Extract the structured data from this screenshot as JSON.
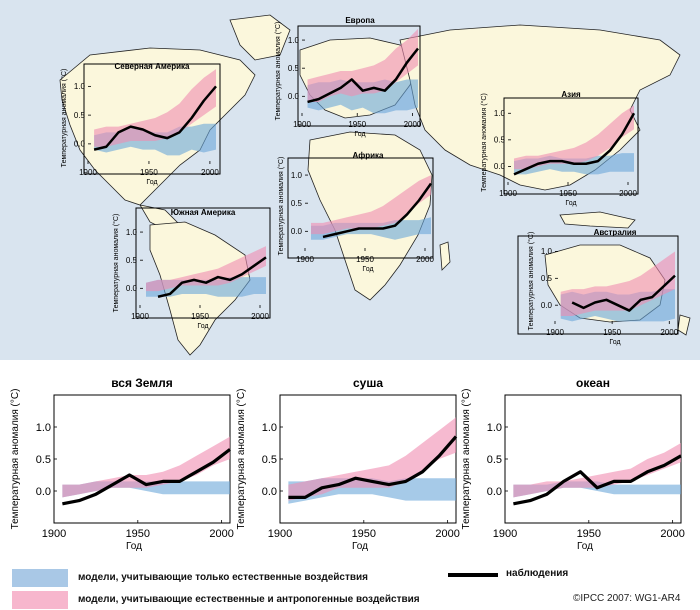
{
  "colors": {
    "ocean": "#d9e4ef",
    "land": "#fbf7dc",
    "coast": "#222222",
    "natural": "#6aa6d9",
    "anthro": "#f08cb0",
    "observed": "#000000"
  },
  "chart_data": [
    {
      "type": "area",
      "region": "map",
      "title": "Северная Америка",
      "ylabel": "Температурная аномалия (°C)",
      "xlabel": "Год",
      "xticks": [
        "1900",
        "1950",
        "2000"
      ],
      "yticks": [
        "0.0",
        "0.5",
        "1.0"
      ],
      "xlim": [
        1900,
        2005
      ],
      "ylim": [
        -0.35,
        1.25
      ],
      "x": [
        1905,
        1915,
        1925,
        1935,
        1945,
        1955,
        1965,
        1975,
        1985,
        1995,
        2005
      ],
      "observed": [
        -0.1,
        -0.05,
        0.2,
        0.3,
        0.25,
        0.15,
        0.1,
        0.2,
        0.45,
        0.75,
        1.0
      ],
      "natural_band": {
        "low": [
          -0.1,
          -0.15,
          -0.1,
          -0.05,
          -0.1,
          -0.1,
          -0.2,
          -0.2,
          -0.1,
          -0.15,
          -0.1
        ],
        "high": [
          0.15,
          0.2,
          0.2,
          0.3,
          0.25,
          0.2,
          0.2,
          0.3,
          0.3,
          0.35,
          0.35
        ]
      },
      "anthro_band": {
        "low": [
          -0.05,
          -0.05,
          0.0,
          0.05,
          0.05,
          0.05,
          0.1,
          0.2,
          0.35,
          0.5,
          0.65
        ],
        "high": [
          0.25,
          0.3,
          0.3,
          0.35,
          0.4,
          0.45,
          0.55,
          0.7,
          0.95,
          1.15,
          1.3
        ]
      }
    },
    {
      "type": "area",
      "region": "map",
      "title": "Европа",
      "ylabel": "Температурная аномалия (°C)",
      "xlabel": "Год",
      "xticks": [
        "1900",
        "1950",
        "2000"
      ],
      "yticks": [
        "0.0",
        "0.5",
        "1.0"
      ],
      "xlim": [
        1900,
        2005
      ],
      "ylim": [
        -0.35,
        1.25
      ],
      "x": [
        1905,
        1915,
        1925,
        1935,
        1945,
        1955,
        1965,
        1975,
        1985,
        1995,
        2005
      ],
      "observed": [
        -0.1,
        -0.05,
        0.05,
        0.15,
        0.3,
        0.1,
        0.15,
        0.1,
        0.3,
        0.6,
        0.85
      ],
      "natural_band": {
        "low": [
          -0.2,
          -0.25,
          -0.2,
          -0.15,
          -0.25,
          -0.2,
          -0.3,
          -0.3,
          -0.25,
          -0.25,
          -0.2
        ],
        "high": [
          0.2,
          0.25,
          0.25,
          0.3,
          0.25,
          0.25,
          0.25,
          0.3,
          0.25,
          0.3,
          0.3
        ]
      },
      "anthro_band": {
        "low": [
          -0.1,
          -0.1,
          0.0,
          0.05,
          0.0,
          0.05,
          0.05,
          0.1,
          0.25,
          0.4,
          0.55
        ],
        "high": [
          0.3,
          0.35,
          0.4,
          0.45,
          0.45,
          0.5,
          0.55,
          0.65,
          0.85,
          1.0,
          1.2
        ]
      }
    },
    {
      "type": "area",
      "region": "map",
      "title": "Азия",
      "ylabel": "Температурная аномалия (°C)",
      "xlabel": "Год",
      "xticks": [
        "1900",
        "1950",
        "2000"
      ],
      "yticks": [
        "0.0",
        "0.5",
        "1.0"
      ],
      "xlim": [
        1900,
        2005
      ],
      "ylim": [
        -0.35,
        1.25
      ],
      "x": [
        1905,
        1915,
        1925,
        1935,
        1945,
        1955,
        1965,
        1975,
        1985,
        1995,
        2005
      ],
      "observed": [
        -0.15,
        -0.05,
        0.05,
        0.1,
        0.1,
        0.05,
        0.05,
        0.1,
        0.3,
        0.6,
        1.0
      ],
      "natural_band": {
        "low": [
          -0.15,
          -0.15,
          -0.1,
          -0.05,
          -0.1,
          -0.1,
          -0.15,
          -0.15,
          -0.1,
          -0.1,
          -0.1
        ],
        "high": [
          0.1,
          0.15,
          0.15,
          0.2,
          0.15,
          0.15,
          0.15,
          0.2,
          0.2,
          0.25,
          0.25
        ]
      },
      "anthro_band": {
        "low": [
          -0.05,
          -0.05,
          0.0,
          0.05,
          0.05,
          0.05,
          0.1,
          0.2,
          0.35,
          0.55,
          0.7
        ],
        "high": [
          0.15,
          0.2,
          0.2,
          0.25,
          0.3,
          0.35,
          0.45,
          0.6,
          0.8,
          1.0,
          1.15
        ]
      }
    },
    {
      "type": "area",
      "region": "map",
      "title": "Африка",
      "ylabel": "Температурная аномалия (°C)",
      "xlabel": "Год",
      "xticks": [
        "1900",
        "1950",
        "2000"
      ],
      "yticks": [
        "0.0",
        "0.5",
        "1.0"
      ],
      "xlim": [
        1900,
        2005
      ],
      "ylim": [
        -0.35,
        1.25
      ],
      "x": [
        1905,
        1915,
        1925,
        1935,
        1945,
        1955,
        1965,
        1975,
        1985,
        1995,
        2005
      ],
      "observed": [
        null,
        -0.1,
        -0.05,
        0.0,
        0.05,
        0.05,
        0.05,
        0.1,
        0.3,
        0.55,
        0.85
      ],
      "natural_band": {
        "low": [
          -0.15,
          -0.15,
          -0.1,
          -0.05,
          -0.05,
          -0.05,
          -0.1,
          -0.15,
          -0.1,
          -0.05,
          -0.05
        ],
        "high": [
          0.1,
          0.1,
          0.15,
          0.15,
          0.15,
          0.15,
          0.15,
          0.2,
          0.2,
          0.2,
          0.25
        ]
      },
      "anthro_band": {
        "low": [
          -0.05,
          -0.05,
          0.0,
          0.05,
          0.05,
          0.05,
          0.1,
          0.15,
          0.3,
          0.5,
          0.65
        ],
        "high": [
          0.15,
          0.15,
          0.2,
          0.25,
          0.3,
          0.35,
          0.45,
          0.6,
          0.75,
          0.9,
          1.0
        ]
      }
    },
    {
      "type": "area",
      "region": "map",
      "title": "Южная Америка",
      "ylabel": "Температурная аномалия (°C)",
      "xlabel": "Год",
      "xticks": [
        "1900",
        "1950",
        "2000"
      ],
      "yticks": [
        "0.0",
        "0.5",
        "1.0"
      ],
      "xlim": [
        1900,
        2005
      ],
      "ylim": [
        -0.35,
        1.25
      ],
      "x": [
        1905,
        1915,
        1925,
        1935,
        1945,
        1955,
        1965,
        1975,
        1985,
        1995,
        2005
      ],
      "observed": [
        null,
        -0.15,
        -0.1,
        0.1,
        0.15,
        0.1,
        0.2,
        0.15,
        0.25,
        0.4,
        0.55
      ],
      "natural_band": {
        "low": [
          -0.15,
          -0.15,
          -0.15,
          -0.1,
          -0.1,
          -0.1,
          -0.15,
          -0.15,
          -0.15,
          -0.1,
          -0.1
        ],
        "high": [
          0.1,
          0.15,
          0.15,
          0.15,
          0.15,
          0.15,
          0.15,
          0.2,
          0.2,
          0.2,
          0.2
        ]
      },
      "anthro_band": {
        "low": [
          -0.05,
          -0.05,
          0.0,
          0.05,
          0.05,
          0.05,
          0.05,
          0.1,
          0.2,
          0.3,
          0.4
        ],
        "high": [
          0.1,
          0.15,
          0.15,
          0.2,
          0.25,
          0.3,
          0.35,
          0.45,
          0.55,
          0.65,
          0.75
        ]
      }
    },
    {
      "type": "area",
      "region": "map",
      "title": "Австралия",
      "ylabel": "Температурная аномалия (°C)",
      "xlabel": "Год",
      "xticks": [
        "1900",
        "1950",
        "2000"
      ],
      "yticks": [
        "0.0",
        "0.5",
        "1.0"
      ],
      "xlim": [
        1900,
        2005
      ],
      "ylim": [
        -0.35,
        1.25
      ],
      "x": [
        1905,
        1915,
        1925,
        1935,
        1945,
        1955,
        1965,
        1975,
        1985,
        1995,
        2005
      ],
      "observed": [
        null,
        0.05,
        -0.05,
        0.05,
        0.1,
        0.0,
        -0.1,
        0.1,
        0.15,
        0.35,
        0.55
      ],
      "natural_band": {
        "low": [
          -0.25,
          -0.3,
          -0.25,
          -0.2,
          -0.25,
          -0.3,
          -0.3,
          -0.3,
          -0.3,
          -0.3,
          -0.25
        ],
        "high": [
          0.2,
          0.25,
          0.2,
          0.25,
          0.25,
          0.2,
          0.2,
          0.25,
          0.25,
          0.3,
          0.3
        ]
      },
      "anthro_band": {
        "low": [
          -0.2,
          -0.2,
          -0.15,
          -0.1,
          -0.1,
          -0.1,
          -0.1,
          0.0,
          0.1,
          0.2,
          0.3
        ],
        "high": [
          0.25,
          0.3,
          0.3,
          0.35,
          0.35,
          0.4,
          0.45,
          0.55,
          0.7,
          0.85,
          1.0
        ]
      }
    },
    {
      "type": "area",
      "region": "bottom",
      "title": "вся Земля",
      "ylabel": "Температурная аномалия (°C)",
      "xlabel": "Год",
      "xticks": [
        "1900",
        "1950",
        "2000"
      ],
      "yticks": [
        "0.0",
        "0.5",
        "1.0"
      ],
      "xlim": [
        1900,
        2005
      ],
      "ylim": [
        -0.5,
        1.5
      ],
      "x": [
        1905,
        1915,
        1925,
        1935,
        1945,
        1955,
        1965,
        1975,
        1985,
        1995,
        2005
      ],
      "observed": [
        -0.2,
        -0.15,
        -0.05,
        0.1,
        0.25,
        0.1,
        0.15,
        0.15,
        0.3,
        0.45,
        0.65
      ],
      "natural_band": {
        "low": [
          -0.1,
          -0.05,
          0.0,
          0.05,
          0.05,
          0.0,
          -0.05,
          -0.05,
          -0.05,
          -0.05,
          -0.05
        ],
        "high": [
          0.1,
          0.1,
          0.15,
          0.15,
          0.15,
          0.15,
          0.15,
          0.15,
          0.15,
          0.15,
          0.15
        ]
      },
      "anthro_band": {
        "low": [
          -0.1,
          -0.05,
          0.0,
          0.05,
          0.05,
          0.05,
          0.1,
          0.15,
          0.25,
          0.4,
          0.5
        ],
        "high": [
          0.1,
          0.1,
          0.15,
          0.2,
          0.25,
          0.25,
          0.3,
          0.4,
          0.55,
          0.7,
          0.85
        ]
      }
    },
    {
      "type": "area",
      "region": "bottom",
      "title": "суша",
      "ylabel": "Температурная аномалия (°C)",
      "xlabel": "Год",
      "xticks": [
        "1900",
        "1950",
        "2000"
      ],
      "yticks": [
        "0.0",
        "0.5",
        "1.0"
      ],
      "xlim": [
        1900,
        2005
      ],
      "ylim": [
        -0.5,
        1.5
      ],
      "x": [
        1905,
        1915,
        1925,
        1935,
        1945,
        1955,
        1965,
        1975,
        1985,
        1995,
        2005
      ],
      "observed": [
        -0.1,
        -0.1,
        0.05,
        0.1,
        0.2,
        0.15,
        0.1,
        0.15,
        0.3,
        0.55,
        0.85
      ],
      "natural_band": {
        "low": [
          -0.2,
          -0.15,
          -0.1,
          -0.05,
          -0.05,
          -0.05,
          -0.1,
          -0.15,
          -0.15,
          -0.15,
          -0.15
        ],
        "high": [
          0.15,
          0.15,
          0.2,
          0.2,
          0.2,
          0.2,
          0.15,
          0.2,
          0.2,
          0.2,
          0.2
        ]
      },
      "anthro_band": {
        "low": [
          -0.15,
          -0.1,
          -0.05,
          0.05,
          0.05,
          0.05,
          0.05,
          0.15,
          0.3,
          0.5,
          0.6
        ],
        "high": [
          0.1,
          0.15,
          0.2,
          0.25,
          0.3,
          0.35,
          0.4,
          0.55,
          0.75,
          0.95,
          1.15
        ]
      }
    },
    {
      "type": "area",
      "region": "bottom",
      "title": "океан",
      "ylabel": "Температурная аномалия (°C)",
      "xlabel": "Год",
      "xticks": [
        "1900",
        "1950",
        "2000"
      ],
      "yticks": [
        "0.0",
        "0.5",
        "1.0"
      ],
      "xlim": [
        1900,
        2005
      ],
      "ylim": [
        -0.5,
        1.5
      ],
      "x": [
        1905,
        1915,
        1925,
        1935,
        1945,
        1955,
        1965,
        1975,
        1985,
        1995,
        2005
      ],
      "observed": [
        -0.2,
        -0.15,
        -0.05,
        0.15,
        0.3,
        0.05,
        0.15,
        0.15,
        0.3,
        0.4,
        0.55
      ],
      "natural_band": {
        "low": [
          -0.1,
          -0.05,
          0.0,
          0.05,
          0.05,
          0.0,
          -0.05,
          -0.05,
          -0.05,
          -0.05,
          -0.05
        ],
        "high": [
          0.1,
          0.1,
          0.1,
          0.15,
          0.15,
          0.15,
          0.1,
          0.1,
          0.1,
          0.1,
          0.1
        ]
      },
      "anthro_band": {
        "low": [
          -0.1,
          -0.05,
          0.0,
          0.05,
          0.05,
          0.05,
          0.1,
          0.15,
          0.25,
          0.35,
          0.45
        ],
        "high": [
          0.1,
          0.1,
          0.15,
          0.15,
          0.2,
          0.25,
          0.3,
          0.35,
          0.5,
          0.6,
          0.75
        ]
      }
    }
  ],
  "legend": {
    "natural_label": "модели, учитывающие только естественные воздействия",
    "anthro_label": "модели, учитывающие естественные и антропогенные воздействия",
    "observed_label": "наблюдения"
  },
  "credit": "©IPCC  2007: WG1-AR4"
}
